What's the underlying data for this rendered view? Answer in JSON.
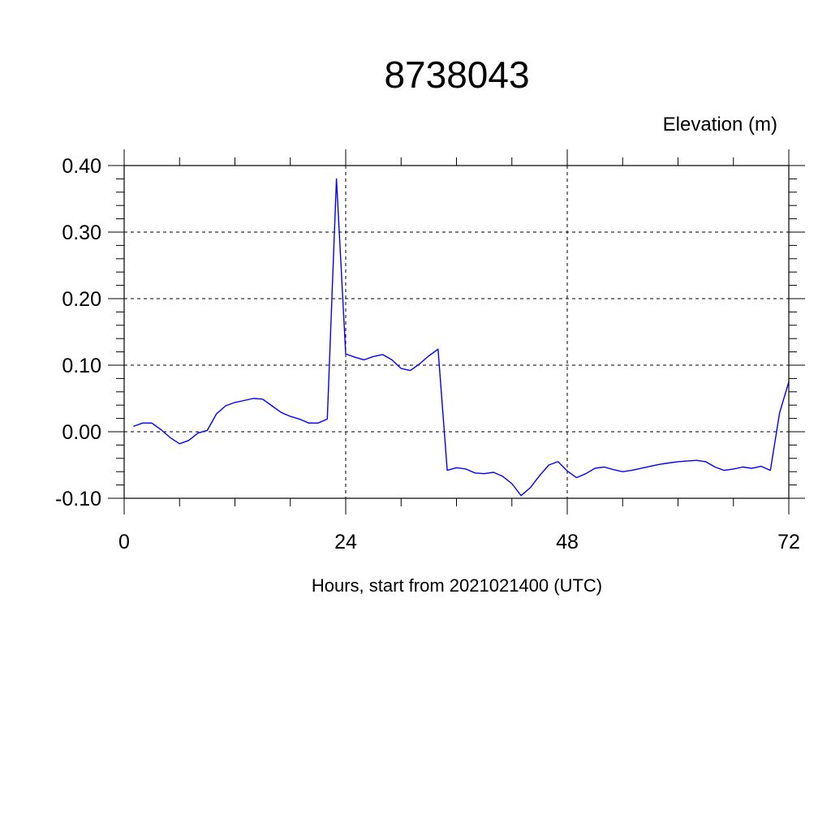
{
  "chart_data": {
    "type": "line",
    "title": "8738043",
    "units_label": "Elevation (m)",
    "xlabel": "Hours, start from 2021021400 (UTC)",
    "ylabel": "",
    "xlim": [
      0,
      72
    ],
    "ylim": [
      -0.1,
      0.4
    ],
    "x_ticks": [
      0,
      24,
      48,
      72
    ],
    "x_tick_labels": [
      "0",
      "24",
      "48",
      "72"
    ],
    "y_ticks": [
      -0.1,
      0.0,
      0.1,
      0.2,
      0.3,
      0.4
    ],
    "y_tick_labels": [
      "-0.10",
      "0.00",
      "0.10",
      "0.20",
      "0.30",
      "0.40"
    ],
    "grid": "dashed",
    "line_color": "#0000ff",
    "series": [
      {
        "x": [
          1,
          2,
          3,
          4,
          5,
          6,
          7,
          8,
          9,
          10,
          11,
          12,
          13,
          14,
          15,
          16,
          17,
          18,
          19,
          20,
          21,
          22,
          23,
          24,
          25,
          26,
          27,
          28,
          29,
          30,
          31,
          32,
          33,
          34,
          35,
          36,
          37,
          38,
          39,
          40,
          41,
          42,
          43,
          44,
          45,
          46,
          47,
          48,
          49,
          50,
          51,
          52,
          53,
          54,
          55,
          56,
          57,
          58,
          59,
          60,
          61,
          62,
          63,
          64,
          65,
          66,
          67,
          68,
          69,
          70,
          71,
          72
        ],
        "values": [
          0.008,
          0.013,
          0.013,
          0.003,
          -0.009,
          -0.018,
          -0.013,
          -0.002,
          0.002,
          0.027,
          0.039,
          0.044,
          0.047,
          0.05,
          0.049,
          0.039,
          0.029,
          0.023,
          0.019,
          0.013,
          0.013,
          0.019,
          0.38,
          0.117,
          0.112,
          0.108,
          0.113,
          0.116,
          0.108,
          0.095,
          0.092,
          0.102,
          0.114,
          0.124,
          -0.058,
          -0.054,
          -0.056,
          -0.062,
          -0.063,
          -0.061,
          -0.067,
          -0.078,
          -0.096,
          -0.084,
          -0.066,
          -0.05,
          -0.045,
          -0.059,
          -0.069,
          -0.063,
          -0.055,
          -0.053,
          -0.057,
          -0.06,
          -0.058,
          -0.055,
          -0.052,
          -0.049,
          -0.047,
          -0.045,
          -0.044,
          -0.043,
          -0.045,
          -0.053,
          -0.058,
          -0.056,
          -0.053,
          -0.055,
          -0.052,
          -0.058,
          0.028,
          0.075
        ]
      }
    ]
  }
}
